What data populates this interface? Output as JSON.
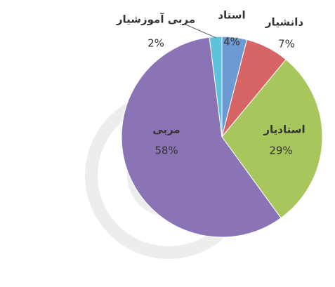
{
  "chart_data": {
    "type": "pie",
    "categories": [
      "استاد",
      "دانشیار",
      "استادیار",
      "مربی",
      "مربی آموزشیار"
    ],
    "values": [
      4,
      7,
      29,
      58,
      2
    ],
    "value_labels": [
      "4%",
      "7%",
      "29%",
      "58%",
      "2%"
    ],
    "colors": [
      "#6c9bd4",
      "#d86565",
      "#a7c65c",
      "#8b74b6",
      "#5ec2dd"
    ]
  }
}
